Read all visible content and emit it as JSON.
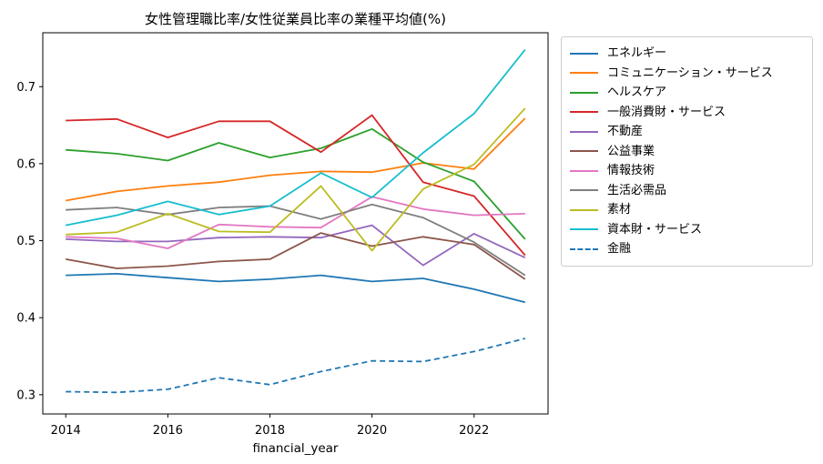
{
  "figure": {
    "title": "女性管理職比率/女性従業員比率の業種平均値(%)",
    "xlabel": "financial_year"
  },
  "chart_data": {
    "type": "line",
    "title": "女性管理職比率/女性従業員比率の業種平均値(%)",
    "xlabel": "financial_year",
    "ylabel": "",
    "x": [
      2014,
      2015,
      2016,
      2017,
      2018,
      2019,
      2020,
      2021,
      2022,
      2023
    ],
    "xticks": [
      2014,
      2016,
      2018,
      2020,
      2022
    ],
    "yticks": [
      0.3,
      0.4,
      0.5,
      0.6,
      0.7
    ],
    "xlim": [
      2013.55,
      2023.45
    ],
    "ylim": [
      0.275,
      0.77
    ],
    "grid": false,
    "legend_position": "outside-right",
    "series": [
      {
        "name": "エネルギー",
        "color": "#1f77b4",
        "dash": false,
        "values": [
          0.455,
          0.457,
          0.452,
          0.447,
          0.45,
          0.455,
          0.447,
          0.451,
          0.437,
          0.42
        ]
      },
      {
        "name": "コミュニケーション・サービス",
        "color": "#ff7f0e",
        "dash": false,
        "values": [
          0.552,
          0.564,
          0.571,
          0.576,
          0.585,
          0.59,
          0.589,
          0.601,
          0.593,
          0.659
        ]
      },
      {
        "name": "ヘルスケア",
        "color": "#2ca02c",
        "dash": false,
        "values": [
          0.618,
          0.613,
          0.604,
          0.627,
          0.608,
          0.62,
          0.645,
          0.602,
          0.577,
          0.502
        ]
      },
      {
        "name": "一般消費財・サービス",
        "color": "#d62728",
        "dash": false,
        "values": [
          0.656,
          0.658,
          0.634,
          0.655,
          0.655,
          0.615,
          0.663,
          0.576,
          0.558,
          0.481
        ]
      },
      {
        "name": "不動産",
        "color": "#9467bd",
        "dash": false,
        "values": [
          0.502,
          0.499,
          0.499,
          0.504,
          0.505,
          0.504,
          0.52,
          0.468,
          0.509,
          0.478
        ]
      },
      {
        "name": "公益事業",
        "color": "#8c564b",
        "dash": false,
        "values": [
          0.476,
          0.464,
          0.467,
          0.473,
          0.476,
          0.51,
          0.493,
          0.505,
          0.495,
          0.45
        ]
      },
      {
        "name": "情報技術",
        "color": "#e377c2",
        "dash": false,
        "values": [
          0.505,
          0.503,
          0.49,
          0.521,
          0.518,
          0.517,
          0.557,
          0.541,
          0.533,
          0.535
        ]
      },
      {
        "name": "生活必需品",
        "color": "#7f7f7f",
        "dash": false,
        "values": [
          0.54,
          0.543,
          0.534,
          0.543,
          0.545,
          0.528,
          0.547,
          0.53,
          0.498,
          0.455
        ]
      },
      {
        "name": "素材",
        "color": "#bcbd22",
        "dash": false,
        "values": [
          0.508,
          0.511,
          0.535,
          0.512,
          0.511,
          0.571,
          0.487,
          0.567,
          0.599,
          0.672
        ]
      },
      {
        "name": "資本財・サービス",
        "color": "#17becf",
        "dash": false,
        "values": [
          0.52,
          0.533,
          0.551,
          0.534,
          0.545,
          0.588,
          0.556,
          0.614,
          0.665,
          0.748
        ]
      },
      {
        "name": "金融",
        "color": "#1f77b4",
        "dash": true,
        "values": [
          0.304,
          0.303,
          0.307,
          0.322,
          0.313,
          0.33,
          0.344,
          0.343,
          0.356,
          0.373
        ]
      }
    ]
  }
}
